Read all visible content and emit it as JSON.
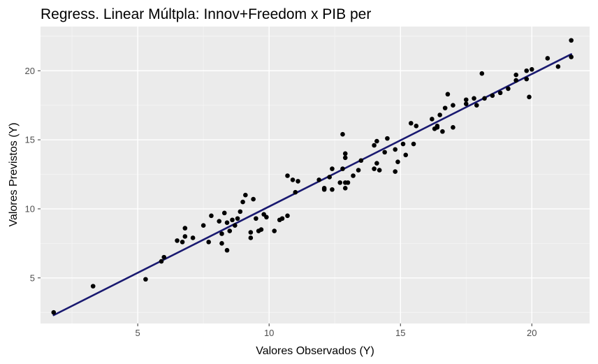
{
  "chart_data": {
    "type": "scatter",
    "title": "Regress. Linear Múltpla: Innov+Freedom x PIB per",
    "xlabel": "Valores Observados (Y)",
    "ylabel": "Valores Previstos (Y)",
    "xlim": [
      1.3,
      22.2
    ],
    "ylim": [
      1.7,
      23.2
    ],
    "xticks": [
      5,
      10,
      15,
      20
    ],
    "yticks": [
      5,
      10,
      15,
      20
    ],
    "grid": true,
    "background": "#ebebeb",
    "point_color": "#000000",
    "line_color": "#191970",
    "fit_line": {
      "x": [
        1.8,
        21.5
      ],
      "y": [
        2.3,
        21.2
      ]
    },
    "points": [
      [
        1.8,
        2.5
      ],
      [
        3.3,
        4.4
      ],
      [
        5.3,
        4.9
      ],
      [
        5.9,
        6.2
      ],
      [
        6.0,
        6.5
      ],
      [
        6.5,
        7.7
      ],
      [
        6.7,
        7.6
      ],
      [
        6.8,
        8.6
      ],
      [
        6.8,
        8.0
      ],
      [
        7.1,
        7.9
      ],
      [
        7.5,
        8.8
      ],
      [
        7.7,
        7.6
      ],
      [
        7.8,
        9.5
      ],
      [
        8.1,
        9.1
      ],
      [
        8.2,
        8.2
      ],
      [
        8.2,
        7.5
      ],
      [
        8.3,
        9.7
      ],
      [
        8.4,
        7.0
      ],
      [
        8.4,
        9.0
      ],
      [
        8.5,
        8.4
      ],
      [
        8.6,
        9.2
      ],
      [
        8.7,
        8.8
      ],
      [
        8.8,
        9.3
      ],
      [
        8.9,
        9.8
      ],
      [
        9.0,
        10.5
      ],
      [
        9.1,
        11.0
      ],
      [
        9.3,
        8.3
      ],
      [
        9.3,
        7.9
      ],
      [
        9.4,
        10.7
      ],
      [
        9.5,
        9.3
      ],
      [
        9.6,
        8.4
      ],
      [
        9.7,
        8.5
      ],
      [
        9.8,
        9.6
      ],
      [
        9.9,
        9.4
      ],
      [
        10.2,
        8.4
      ],
      [
        10.4,
        9.2
      ],
      [
        10.5,
        9.3
      ],
      [
        10.7,
        9.5
      ],
      [
        10.7,
        12.4
      ],
      [
        10.9,
        12.1
      ],
      [
        11.0,
        11.2
      ],
      [
        11.1,
        12.0
      ],
      [
        11.9,
        12.1
      ],
      [
        12.1,
        11.5
      ],
      [
        12.1,
        11.4
      ],
      [
        12.3,
        12.3
      ],
      [
        12.4,
        11.4
      ],
      [
        12.4,
        12.9
      ],
      [
        12.7,
        11.9
      ],
      [
        12.8,
        12.9
      ],
      [
        12.8,
        15.4
      ],
      [
        12.9,
        13.7
      ],
      [
        12.9,
        14.0
      ],
      [
        12.9,
        11.9
      ],
      [
        12.9,
        11.5
      ],
      [
        13.0,
        11.9
      ],
      [
        13.2,
        12.4
      ],
      [
        13.4,
        12.8
      ],
      [
        13.5,
        13.5
      ],
      [
        14.0,
        12.9
      ],
      [
        14.0,
        14.6
      ],
      [
        14.1,
        13.3
      ],
      [
        14.1,
        14.9
      ],
      [
        14.2,
        12.8
      ],
      [
        14.4,
        14.1
      ],
      [
        14.5,
        15.1
      ],
      [
        14.8,
        12.7
      ],
      [
        14.8,
        14.3
      ],
      [
        14.9,
        13.4
      ],
      [
        15.1,
        14.7
      ],
      [
        15.2,
        13.9
      ],
      [
        15.4,
        16.2
      ],
      [
        15.5,
        14.7
      ],
      [
        15.6,
        16.0
      ],
      [
        16.2,
        16.5
      ],
      [
        16.3,
        15.8
      ],
      [
        16.4,
        16.0
      ],
      [
        16.4,
        15.9
      ],
      [
        16.5,
        16.8
      ],
      [
        16.6,
        15.6
      ],
      [
        16.7,
        17.3
      ],
      [
        16.8,
        18.3
      ],
      [
        17.0,
        15.9
      ],
      [
        17.0,
        17.5
      ],
      [
        17.5,
        17.9
      ],
      [
        17.5,
        17.6
      ],
      [
        17.8,
        18.0
      ],
      [
        17.9,
        17.5
      ],
      [
        18.1,
        19.8
      ],
      [
        18.2,
        18.0
      ],
      [
        18.5,
        18.2
      ],
      [
        18.8,
        18.4
      ],
      [
        19.1,
        18.7
      ],
      [
        19.4,
        19.7
      ],
      [
        19.4,
        19.3
      ],
      [
        19.8,
        20.0
      ],
      [
        19.8,
        19.4
      ],
      [
        20.0,
        20.1
      ],
      [
        19.9,
        18.1
      ],
      [
        20.6,
        20.9
      ],
      [
        21.0,
        20.3
      ],
      [
        21.5,
        22.2
      ],
      [
        21.5,
        21.0
      ]
    ]
  }
}
